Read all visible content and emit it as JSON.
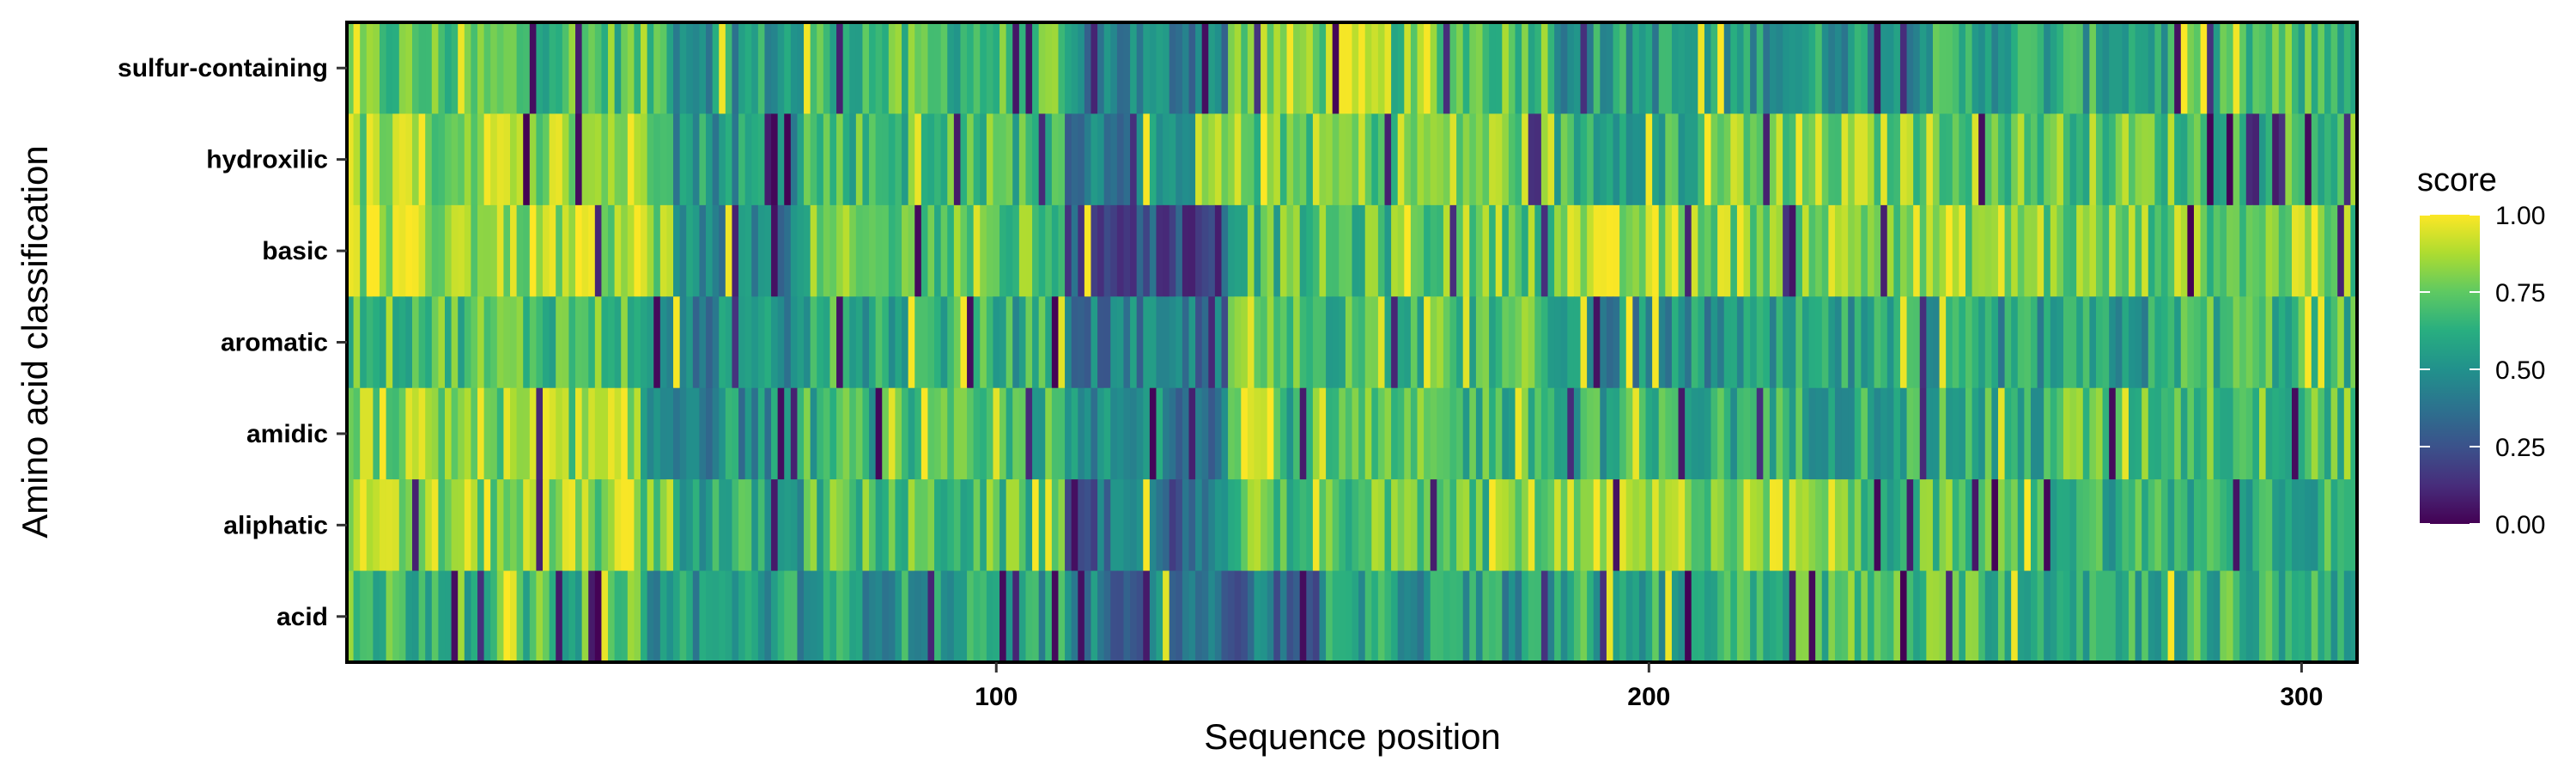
{
  "chart_data": {
    "type": "heatmap",
    "title": "",
    "xlabel": "Sequence position",
    "ylabel": "Amino acid classification",
    "x_range": [
      1,
      308
    ],
    "x_ticks": [
      100,
      200,
      300
    ],
    "x_tick_labels": [
      "100",
      "200",
      "300"
    ],
    "categories_y_top_to_bottom": [
      "sulfur-containing",
      "hydroxilic",
      "basic",
      "aromatic",
      "amidic",
      "aliphatic",
      "acid"
    ],
    "n_positions": 308,
    "colorscale": "viridis",
    "value_range": [
      0,
      1
    ],
    "legend": {
      "title": "score",
      "ticks": [
        1.0,
        0.75,
        0.5,
        0.25,
        0.0
      ],
      "tick_labels": [
        "1.00",
        "0.75",
        "0.50",
        "0.25",
        "0.00"
      ],
      "position": "right"
    },
    "grid": false,
    "rows": [
      {
        "name": "sulfur-containing",
        "bands": [
          [
            1,
            50,
            0.72
          ],
          [
            51,
            70,
            0.55
          ],
          [
            71,
            110,
            0.68
          ],
          [
            111,
            135,
            0.45
          ],
          [
            136,
            160,
            0.82
          ],
          [
            161,
            185,
            0.75
          ],
          [
            186,
            240,
            0.55
          ],
          [
            241,
            280,
            0.6
          ],
          [
            281,
            308,
            0.68
          ]
        ]
      },
      {
        "name": "hydroxilic",
        "bands": [
          [
            1,
            25,
            0.82
          ],
          [
            26,
            50,
            0.85
          ],
          [
            51,
            70,
            0.55
          ],
          [
            71,
            110,
            0.7
          ],
          [
            111,
            130,
            0.45
          ],
          [
            131,
            160,
            0.78
          ],
          [
            161,
            185,
            0.8
          ],
          [
            186,
            210,
            0.65
          ],
          [
            211,
            250,
            0.8
          ],
          [
            251,
            280,
            0.75
          ],
          [
            281,
            308,
            0.7
          ]
        ]
      },
      {
        "name": "basic",
        "bands": [
          [
            1,
            50,
            0.86
          ],
          [
            51,
            70,
            0.45
          ],
          [
            71,
            110,
            0.72
          ],
          [
            111,
            135,
            0.25
          ],
          [
            136,
            160,
            0.7
          ],
          [
            161,
            185,
            0.78
          ],
          [
            186,
            190,
            0.88
          ],
          [
            191,
            260,
            0.83
          ],
          [
            261,
            308,
            0.78
          ]
        ]
      },
      {
        "name": "aromatic",
        "bands": [
          [
            1,
            45,
            0.72
          ],
          [
            46,
            70,
            0.45
          ],
          [
            71,
            110,
            0.62
          ],
          [
            111,
            135,
            0.4
          ],
          [
            136,
            185,
            0.7
          ],
          [
            186,
            220,
            0.5
          ],
          [
            221,
            280,
            0.55
          ],
          [
            281,
            308,
            0.68
          ]
        ]
      },
      {
        "name": "amidic",
        "bands": [
          [
            1,
            45,
            0.82
          ],
          [
            46,
            70,
            0.5
          ],
          [
            71,
            110,
            0.65
          ],
          [
            111,
            135,
            0.45
          ],
          [
            136,
            142,
            0.92
          ],
          [
            143,
            185,
            0.68
          ],
          [
            186,
            260,
            0.62
          ],
          [
            261,
            308,
            0.72
          ]
        ]
      },
      {
        "name": "aliphatic",
        "bands": [
          [
            1,
            50,
            0.82
          ],
          [
            51,
            70,
            0.6
          ],
          [
            71,
            110,
            0.7
          ],
          [
            111,
            135,
            0.35
          ],
          [
            136,
            175,
            0.72
          ],
          [
            176,
            190,
            0.82
          ],
          [
            191,
            230,
            0.82
          ],
          [
            231,
            260,
            0.7
          ],
          [
            261,
            308,
            0.65
          ]
        ]
      },
      {
        "name": "acid",
        "bands": [
          [
            1,
            45,
            0.68
          ],
          [
            46,
            70,
            0.55
          ],
          [
            71,
            110,
            0.55
          ],
          [
            111,
            135,
            0.4
          ],
          [
            136,
            150,
            0.35
          ],
          [
            151,
            185,
            0.55
          ],
          [
            186,
            210,
            0.62
          ],
          [
            211,
            260,
            0.7
          ],
          [
            261,
            308,
            0.65
          ]
        ]
      }
    ]
  }
}
